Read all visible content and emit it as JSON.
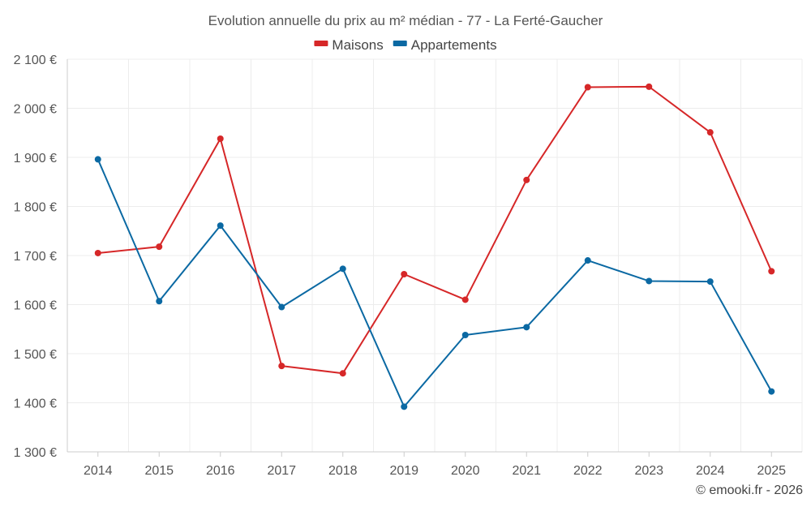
{
  "chart_data": {
    "type": "line",
    "title": "Evolution annuelle du prix au m² médian - 77 - La Ferté-Gaucher",
    "categories": [
      "2014",
      "2015",
      "2016",
      "2017",
      "2018",
      "2019",
      "2020",
      "2021",
      "2022",
      "2023",
      "2024",
      "2025"
    ],
    "series": [
      {
        "name": "Maisons",
        "color": "#d62728",
        "values": [
          1705,
          1718,
          1938,
          1475,
          1460,
          1662,
          1610,
          1854,
          2043,
          2044,
          1951,
          1668
        ]
      },
      {
        "name": "Appartements",
        "color": "#0b69a3",
        "values": [
          1896,
          1607,
          1761,
          1595,
          1673,
          1392,
          1538,
          1554,
          1690,
          1648,
          1647,
          1423
        ]
      }
    ],
    "ylim": [
      1300,
      2100
    ],
    "yticks": [
      1300,
      1400,
      1500,
      1600,
      1700,
      1800,
      1900,
      2000,
      2100
    ],
    "ytick_labels": [
      "1 300 €",
      "1 400 €",
      "1 500 €",
      "1 600 €",
      "1 700 €",
      "1 800 €",
      "1 900 €",
      "2 000 €",
      "2 100 €"
    ],
    "xlabel": "",
    "ylabel": "",
    "grid": true,
    "legend": "top-center"
  },
  "credit": "© emooki.fr - 2026"
}
